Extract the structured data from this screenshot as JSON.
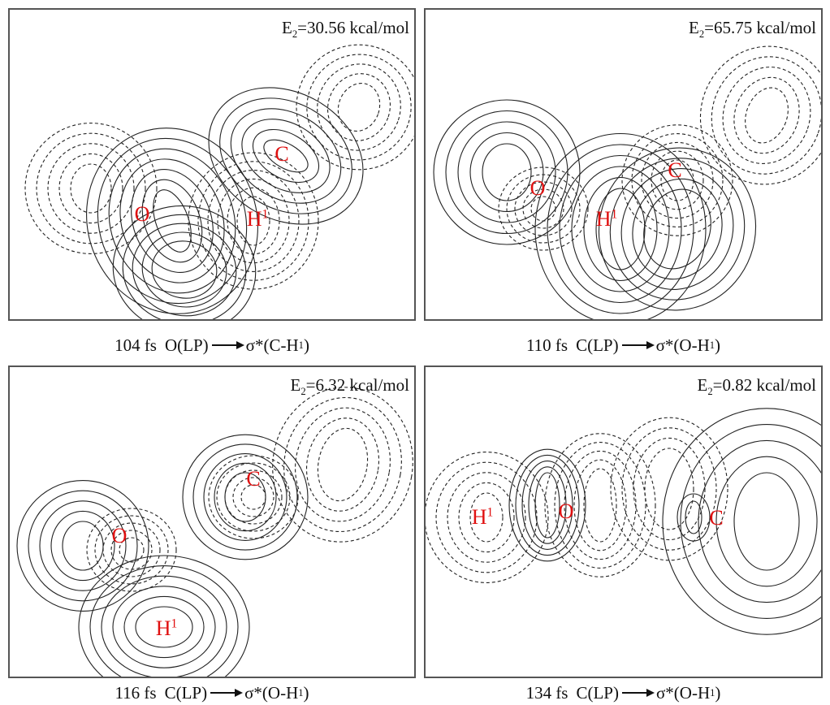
{
  "panels": [
    {
      "energy": {
        "symbol": "E",
        "subscript": "2",
        "value": "=30.56 kcal/mol"
      },
      "atoms": [
        {
          "label": "O"
        },
        {
          "label": "H",
          "superscript": "1"
        },
        {
          "label": "C"
        }
      ],
      "caption": {
        "time": "104 fs",
        "donor": "O(LP)",
        "acceptor": "σ*(C-H",
        "acceptor_superscript": "1",
        "acceptor_close": ")"
      }
    },
    {
      "energy": {
        "symbol": "E",
        "subscript": "2",
        "value": "=65.75 kcal/mol"
      },
      "atoms": [
        {
          "label": "O"
        },
        {
          "label": "H",
          "superscript": "1"
        },
        {
          "label": "C"
        }
      ],
      "caption": {
        "time": "110 fs",
        "donor": "C(LP)",
        "acceptor": "σ*(O-H",
        "acceptor_superscript": "1",
        "acceptor_close": ")"
      }
    },
    {
      "energy": {
        "symbol": "E",
        "subscript": "2",
        "value": "=6.32 kcal/mol"
      },
      "atoms": [
        {
          "label": "O"
        },
        {
          "label": "H",
          "superscript": "1"
        },
        {
          "label": "C"
        }
      ],
      "caption": {
        "time": "116 fs",
        "donor": "C(LP)",
        "acceptor": "σ*(O-H",
        "acceptor_superscript": "1",
        "acceptor_close": ")"
      }
    },
    {
      "energy": {
        "symbol": "E",
        "subscript": "2",
        "value": "=0.82 kcal/mol"
      },
      "atoms": [
        {
          "label": "H",
          "superscript": "1"
        },
        {
          "label": "O"
        },
        {
          "label": "C"
        }
      ],
      "caption": {
        "time": "134 fs",
        "donor": "C(LP)",
        "acceptor": "σ*(O-H",
        "acceptor_superscript": "1",
        "acceptor_close": ")"
      }
    }
  ]
}
